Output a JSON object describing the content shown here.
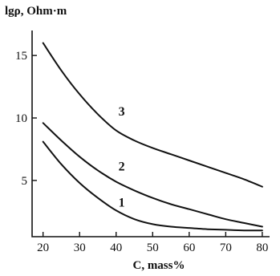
{
  "chart_data": {
    "type": "line",
    "title": "",
    "ylabel": "lgρ, Ohm·m",
    "xlabel": "C, mass%",
    "xlim": [
      17,
      82
    ],
    "ylim": [
      0.5,
      17
    ],
    "xticks": [
      20,
      30,
      40,
      50,
      60,
      70,
      80
    ],
    "yticks": [
      5,
      10,
      15
    ],
    "grid": false,
    "legend": "none",
    "series": [
      {
        "name": "1",
        "x": [
          20,
          25,
          30,
          35,
          40,
          45,
          50,
          55,
          60,
          65,
          70,
          75,
          80
        ],
        "y": [
          8.1,
          6.3,
          4.8,
          3.6,
          2.6,
          1.9,
          1.5,
          1.3,
          1.2,
          1.1,
          1.05,
          1.0,
          1.0
        ]
      },
      {
        "name": "2",
        "x": [
          20,
          25,
          30,
          35,
          40,
          45,
          50,
          55,
          60,
          65,
          70,
          75,
          80
        ],
        "y": [
          9.6,
          8.2,
          6.9,
          5.8,
          4.9,
          4.2,
          3.6,
          3.1,
          2.7,
          2.3,
          1.9,
          1.6,
          1.3
        ]
      },
      {
        "name": "3",
        "x": [
          20,
          25,
          30,
          35,
          40,
          45,
          50,
          55,
          60,
          65,
          70,
          75,
          80
        ],
        "y": [
          16.0,
          13.8,
          11.9,
          10.3,
          9.0,
          8.2,
          7.6,
          7.1,
          6.6,
          6.1,
          5.6,
          5.1,
          4.5
        ]
      }
    ],
    "annotations": [
      {
        "text": "1",
        "x": 41.5,
        "y": 2.9
      },
      {
        "text": "2",
        "x": 41.5,
        "y": 5.8
      },
      {
        "text": "3",
        "x": 41.5,
        "y": 10.2
      }
    ]
  }
}
